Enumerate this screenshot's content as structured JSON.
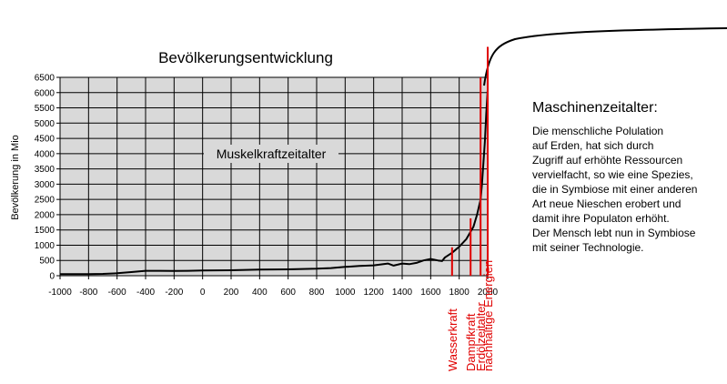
{
  "chart_data": {
    "type": "line",
    "title": "Bevölkerungsentwicklung",
    "ylabel": "Bevölkerung in Mio",
    "xlabel": "",
    "xlim": [
      -1000,
      2000
    ],
    "ylim": [
      0,
      6500
    ],
    "xticks": [
      "-1000",
      "-800",
      "-600",
      "-400",
      "-200",
      "0",
      "200",
      "400",
      "600",
      "800",
      "1000",
      "1200",
      "1400",
      "1600",
      "1800",
      "2000"
    ],
    "yticks": [
      "0",
      "500",
      "1000",
      "1500",
      "2000",
      "2500",
      "3000",
      "3500",
      "4000",
      "4500",
      "5000",
      "5500",
      "6000",
      "6500"
    ],
    "grid": true,
    "plot_background": "#d9d9d9",
    "line_color": "#000000",
    "marker_color": "#e00000",
    "series": [
      {
        "x": [
          -1000,
          -900,
          -800,
          -700,
          -600,
          -500,
          -400,
          -300,
          -200,
          -100,
          0,
          200,
          400,
          600,
          800,
          900,
          1000,
          1100,
          1200,
          1250,
          1300,
          1340,
          1400,
          1450,
          1500,
          1550,
          1600,
          1650,
          1680,
          1700,
          1750,
          1800,
          1850,
          1900,
          1925,
          1950,
          1960,
          1970,
          1980,
          1990,
          1995,
          2000
        ],
        "y": [
          50,
          50,
          55,
          60,
          80,
          120,
          160,
          160,
          155,
          160,
          170,
          180,
          200,
          210,
          230,
          250,
          290,
          320,
          340,
          370,
          400,
          330,
          400,
          380,
          420,
          500,
          550,
          500,
          480,
          600,
          750,
          950,
          1200,
          1600,
          2000,
          2500,
          3000,
          3700,
          4400,
          5300,
          5700,
          6100
        ]
      }
    ],
    "annotations": [
      {
        "label": "Muskelkraftzeitalter"
      },
      {
        "label": "Wasserkraft",
        "x": 1750,
        "y": 930
      },
      {
        "label": "Dampfkraft",
        "x": 1880,
        "y": 1880
      },
      {
        "label": "Erdölzeitalter",
        "x": 1950,
        "y": 6500
      },
      {
        "label": "nachhaltige Energien",
        "x": 2000,
        "y": 7500
      }
    ]
  },
  "side_text": {
    "title": "Maschinenzeitalter:",
    "lines": [
      "Die menschliche Polulation",
      "auf Erden, hat sich durch",
      "Zugriff auf erhöhte Ressourcen",
      "vervielfacht, so wie eine Spezies,",
      "die in Symbiose mit einer anderen",
      "Art neue Nieschen erobert und",
      "damit ihre Populaton erhöht.",
      "Der Mensch lebt nun in Symbiose",
      "mit seiner Technologie."
    ]
  }
}
